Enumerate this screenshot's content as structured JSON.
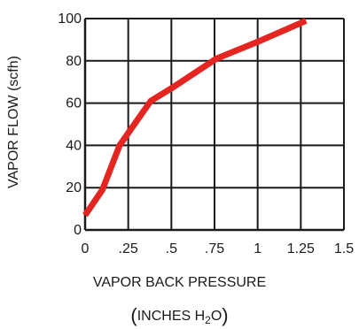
{
  "chart_data": {
    "type": "line",
    "title": "",
    "xlabel_line1": "VAPOR BACK PRESSURE",
    "xlabel_line2": {
      "open": "(",
      "prefix": "INCHES H",
      "subscript": "2",
      "suffix": "O",
      "close": ")"
    },
    "ylabel": "VAPOR FLOW (scfh)",
    "xlim": [
      0,
      1.5
    ],
    "ylim": [
      0,
      100
    ],
    "x_ticks": [
      {
        "value": 0,
        "label": "0"
      },
      {
        "value": 0.25,
        "label": ".25"
      },
      {
        "value": 0.5,
        "label": ".5"
      },
      {
        "value": 0.75,
        "label": ".75"
      },
      {
        "value": 1.0,
        "label": "1"
      },
      {
        "value": 1.25,
        "label": "1.25"
      },
      {
        "value": 1.5,
        "label": "1.5"
      }
    ],
    "y_ticks": [
      {
        "value": 0,
        "label": "0"
      },
      {
        "value": 20,
        "label": "20"
      },
      {
        "value": 40,
        "label": "40"
      },
      {
        "value": 60,
        "label": "60"
      },
      {
        "value": 80,
        "label": "80"
      },
      {
        "value": 100,
        "label": "100"
      }
    ],
    "grid": true,
    "series": [
      {
        "color": "#e52521",
        "points": [
          {
            "x": 0.0,
            "y": 7
          },
          {
            "x": 0.1,
            "y": 19
          },
          {
            "x": 0.2,
            "y": 40
          },
          {
            "x": 0.38,
            "y": 61
          },
          {
            "x": 0.5,
            "y": 67
          },
          {
            "x": 0.76,
            "y": 81
          },
          {
            "x": 1.0,
            "y": 89
          },
          {
            "x": 1.28,
            "y": 99
          }
        ]
      }
    ]
  }
}
